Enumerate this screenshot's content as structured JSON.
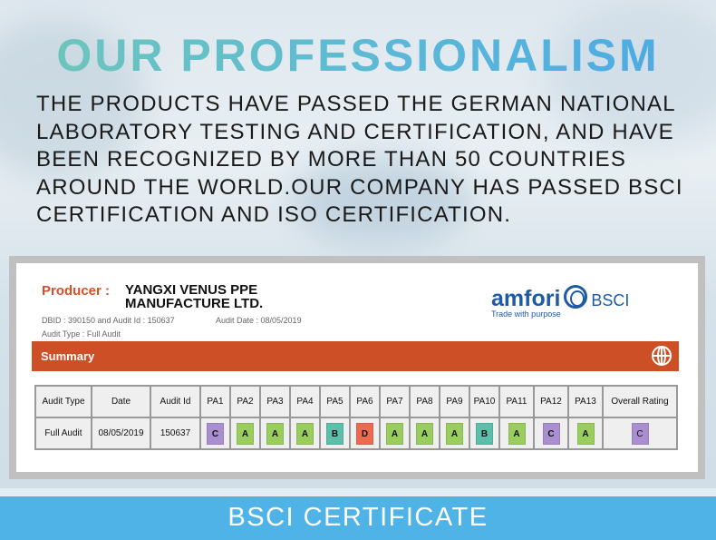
{
  "title": "OUR PROFESSIONALISM",
  "description": "THE PRODUCTS HAVE PASSED THE GERMAN NATIONAL LABORATORY TESTING AND CERTIFICATION, AND HAVE BEEN RECOGNIZED BY MORE THAN 50 COUNTRIES AROUND THE WORLD.OUR COMPANY HAS PASSED BSCI CERTIFICATION AND ISO CERTIFICATION.",
  "certificate": {
    "producer_label": "Producer :",
    "producer_line1": "YANGXI VENUS PPE",
    "producer_line2": "MANUFACTURE LTD.",
    "dbid": "DBID : 390150 and Audit Id : 150637",
    "audit_date": "Audit Date : 08/05/2019",
    "audit_type": "Audit Type : Full Audit",
    "logo": {
      "brand": "amfori",
      "suffix": "BSCI",
      "tagline": "Trade with purpose"
    },
    "summary_label": "Summary",
    "summary_icon": "globe-icon",
    "headers": [
      "Audit Type",
      "Date",
      "Audit Id",
      "PA1",
      "PA2",
      "PA3",
      "PA4",
      "PA5",
      "PA6",
      "PA7",
      "PA8",
      "PA9",
      "PA10",
      "PA11",
      "PA12",
      "PA13",
      "Overall Rating"
    ],
    "row": {
      "audit_type": "Full Audit",
      "date": "08/05/2019",
      "audit_id": "150637",
      "ratings": [
        "C",
        "A",
        "A",
        "A",
        "B",
        "D",
        "A",
        "A",
        "A",
        "B",
        "A",
        "C",
        "A"
      ],
      "overall": "C"
    },
    "rating_colors": {
      "A": "#9acd5e",
      "B": "#5bbfaa",
      "C": "#a98fcf",
      "D": "#ec6a50"
    }
  },
  "banner": "BSCI CERTIFICATE"
}
